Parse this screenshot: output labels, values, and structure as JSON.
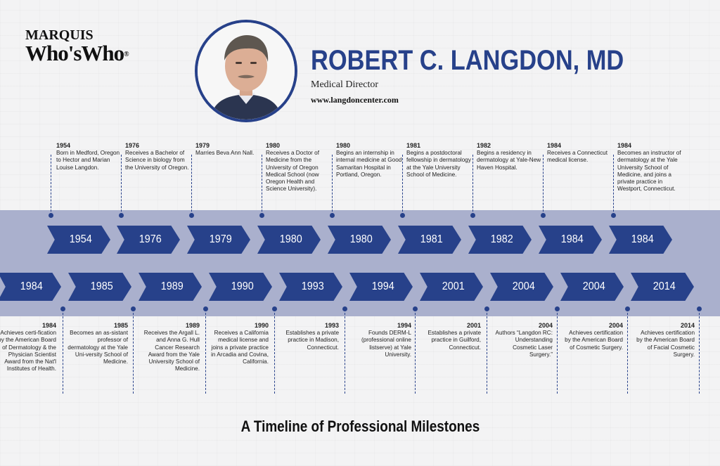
{
  "logo": {
    "top": "MARQUIS",
    "bottom": "Who'sWho",
    "reg": "®"
  },
  "header": {
    "name": "ROBERT C. LANGDON, MD",
    "role": "Medical Director",
    "website": "www.langdoncenter.com"
  },
  "top_events": [
    {
      "year": "1954",
      "text": "Born in Medford, Oregon to Hector and Marian Louise Langdon."
    },
    {
      "year": "1976",
      "text": "Receives a Bachelor of Science in biology from the University of Oregon."
    },
    {
      "year": "1979",
      "text": "Marries Beva Ann Nall."
    },
    {
      "year": "1980",
      "text": "Receives a Doctor of Medicine from the University of Oregon Medical School (now Oregon Health and Science University)."
    },
    {
      "year": "1980",
      "text": "Begins an internship in internal medicine at Good Samaritan Hospital in Portland, Oregon."
    },
    {
      "year": "1981",
      "text": "Begins a postdoctoral fellowship in dermatology at the Yale University School of Medicine."
    },
    {
      "year": "1982",
      "text": "Begins a residency in dermatology at Yale-New Haven Hospital."
    },
    {
      "year": "1984",
      "text": "Receives a Connecticut medical license."
    },
    {
      "year": "1984",
      "text": "Becomes an instructor of dermatology at the Yale University School of Medicine, and joins a private practice in Westport, Connecticut."
    }
  ],
  "bottom_events": [
    {
      "year": "1984",
      "text": "Achieves certi-fication by the American Board of Dermatology & the Physician Scientist Award from the Nat'l Institutes of Health."
    },
    {
      "year": "1985",
      "text": "Becomes an as-sistant professor of dermatology at the Yale Uni-versity School of Medicine."
    },
    {
      "year": "1989",
      "text": "Receives the Argall L. and Anna G. Hull Cancer Research Award from the Yale University School of Medicine."
    },
    {
      "year": "1990",
      "text": "Receives a California medical license and joins a private practice in Arcadia and Covina, California."
    },
    {
      "year": "1993",
      "text": "Establishes a private practice in Madison, Connecticut."
    },
    {
      "year": "1994",
      "text": "Founds DERM-L (professional online listserve) at Yale University."
    },
    {
      "year": "2001",
      "text": "Establishes a private practice in Guilford, Connecticut."
    },
    {
      "year": "2004",
      "text": "Authors “Langdon RC: Understanding Cosmetic Laser Surgery.”"
    },
    {
      "year": "2004",
      "text": "Achieves certification by the American Board of Cosmetic Surgery."
    },
    {
      "year": "2014",
      "text": "Achieves certification by the American Board of Facial Cosmetic Surgery."
    }
  ],
  "footer": {
    "title": "A Timeline of Professional Milestones"
  },
  "colors": {
    "accent": "#27418a",
    "band": "#aab0cd",
    "background": "#f3f3f4"
  },
  "icons": {
    "portrait": "portrait-photo"
  }
}
